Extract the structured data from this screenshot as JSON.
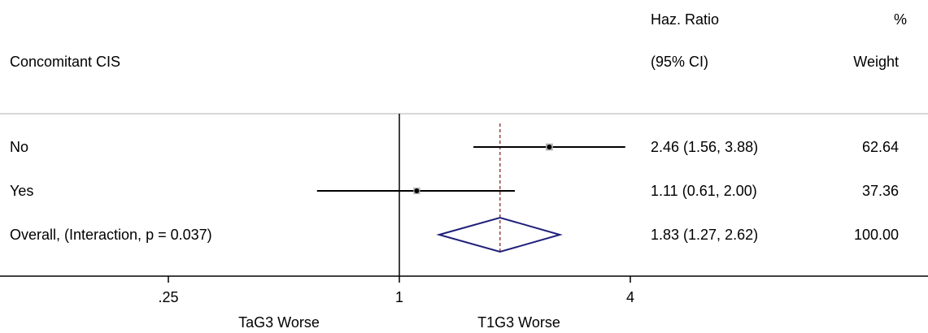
{
  "chart_data": {
    "type": "forest",
    "header": {
      "subgroup_title": "Concomitant CIS",
      "effect_title_line1": "Haz. Ratio",
      "effect_title_line2": "(95% CI)",
      "weight_title_line1": "%",
      "weight_title_line2": "Weight"
    },
    "x_scale": "log",
    "x_ticks": [
      {
        "value": 0.25,
        "label": ".25"
      },
      {
        "value": 1,
        "label": "1"
      },
      {
        "value": 4,
        "label": "4"
      }
    ],
    "xlim": [
      0.25,
      4
    ],
    "reference_line": 1,
    "overall_line": 1.83,
    "x_direction_labels": {
      "left": "TaG3 Worse",
      "right": "T1G3 Worse"
    },
    "rows": [
      {
        "label": "No",
        "hr": 2.46,
        "ci_low": 1.56,
        "ci_high": 3.88,
        "ci_text": "2.46 (1.56, 3.88)",
        "weight": 62.64,
        "weight_text": "62.64",
        "kind": "study"
      },
      {
        "label": "Yes",
        "hr": 1.11,
        "ci_low": 0.61,
        "ci_high": 2.0,
        "ci_text": "1.11 (0.61, 2.00)",
        "weight": 37.36,
        "weight_text": "37.36",
        "kind": "study"
      },
      {
        "label": "Overall, (Interaction,  p = 0.037)",
        "hr": 1.83,
        "ci_low": 1.27,
        "ci_high": 2.62,
        "ci_text": "1.83 (1.27, 2.62)",
        "weight": 100.0,
        "weight_text": "100.00",
        "kind": "overall"
      }
    ],
    "colors": {
      "ci_line": "#000000",
      "box": "#b3b3b3",
      "point": "#000000",
      "diamond": "#1f1f7a",
      "overall_line": "#8b2a2a",
      "axis": "#000000",
      "separator": "#b0b0b0"
    }
  }
}
